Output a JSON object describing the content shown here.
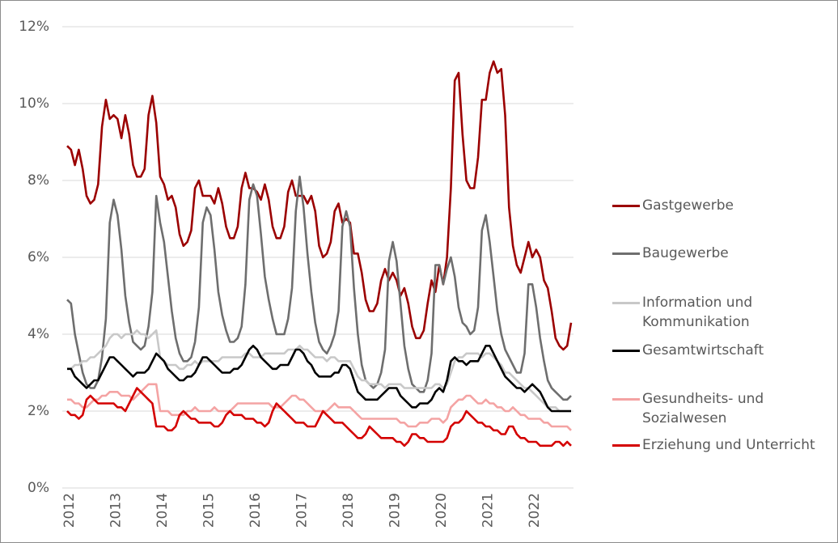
{
  "chart_data": {
    "type": "line",
    "categories": [
      "2012",
      null,
      null,
      null,
      null,
      null,
      null,
      null,
      null,
      null,
      null,
      null,
      "2013",
      null,
      null,
      null,
      null,
      null,
      null,
      null,
      null,
      null,
      null,
      null,
      "2014",
      null,
      null,
      null,
      null,
      null,
      null,
      null,
      null,
      null,
      null,
      null,
      "2015",
      null,
      null,
      null,
      null,
      null,
      null,
      null,
      null,
      null,
      null,
      null,
      "2016",
      null,
      null,
      null,
      null,
      null,
      null,
      null,
      null,
      null,
      null,
      null,
      "2017",
      null,
      null,
      null,
      null,
      null,
      null,
      null,
      null,
      null,
      null,
      null,
      "2018",
      null,
      null,
      null,
      null,
      null,
      null,
      null,
      null,
      null,
      null,
      null,
      "2019",
      null,
      null,
      null,
      null,
      null,
      null,
      null,
      null,
      null,
      null,
      null,
      "2020",
      null,
      null,
      null,
      null,
      null,
      null,
      null,
      null,
      null,
      null,
      null,
      "2021",
      null,
      null,
      null,
      null,
      null,
      null,
      null,
      null,
      null,
      null,
      null,
      "2022",
      null,
      null,
      null,
      null,
      null,
      null,
      null,
      null,
      null,
      null
    ],
    "series": [
      {
        "name": "Gastgewerbe",
        "color": "#9b0000",
        "values": [
          8.9,
          8.8,
          8.4,
          8.8,
          8.3,
          7.6,
          7.4,
          7.5,
          7.9,
          9.4,
          10.1,
          9.6,
          9.7,
          9.6,
          9.1,
          9.7,
          9.2,
          8.4,
          8.1,
          8.1,
          8.3,
          9.7,
          10.2,
          9.5,
          8.1,
          7.9,
          7.5,
          7.6,
          7.3,
          6.6,
          6.3,
          6.4,
          6.7,
          7.8,
          8.0,
          7.6,
          7.6,
          7.6,
          7.4,
          7.8,
          7.4,
          6.8,
          6.5,
          6.5,
          6.8,
          7.8,
          8.2,
          7.8,
          7.8,
          7.7,
          7.5,
          7.9,
          7.5,
          6.8,
          6.5,
          6.5,
          6.8,
          7.7,
          8.0,
          7.6,
          7.6,
          7.6,
          7.4,
          7.6,
          7.2,
          6.3,
          6.0,
          6.1,
          6.4,
          7.2,
          7.4,
          6.9,
          7.0,
          6.9,
          6.1,
          6.1,
          5.6,
          4.9,
          4.6,
          4.6,
          4.8,
          5.4,
          5.7,
          5.4,
          5.6,
          5.4,
          5.0,
          5.2,
          4.8,
          4.2,
          3.9,
          3.9,
          4.1,
          4.8,
          5.4,
          5.1,
          5.8,
          5.3,
          6.0,
          7.8,
          10.6,
          10.8,
          9.2,
          8.0,
          7.8,
          7.8,
          8.6,
          10.1,
          10.1,
          10.8,
          11.1,
          10.8,
          10.9,
          9.7,
          7.3,
          6.3,
          5.8,
          5.6,
          6.0,
          6.4,
          6.0,
          6.2,
          6.0,
          5.4,
          5.2,
          4.6,
          3.9,
          3.7,
          3.6,
          3.7,
          4.3
        ]
      },
      {
        "name": "Baugewerbe",
        "color": "#6e6e6e",
        "values": [
          4.9,
          4.8,
          4.0,
          3.5,
          3.0,
          2.7,
          2.6,
          2.6,
          2.8,
          3.4,
          4.4,
          6.9,
          7.5,
          7.1,
          6.2,
          5.0,
          4.3,
          3.8,
          3.7,
          3.6,
          3.7,
          4.2,
          5.1,
          7.6,
          6.9,
          6.4,
          5.5,
          4.6,
          3.9,
          3.5,
          3.3,
          3.3,
          3.4,
          3.8,
          4.7,
          6.9,
          7.3,
          7.1,
          6.2,
          5.1,
          4.5,
          4.1,
          3.8,
          3.8,
          3.9,
          4.2,
          5.3,
          7.5,
          7.9,
          7.6,
          6.6,
          5.5,
          4.9,
          4.4,
          4.0,
          4.0,
          4.0,
          4.4,
          5.2,
          7.2,
          8.1,
          7.3,
          6.1,
          5.1,
          4.3,
          3.8,
          3.6,
          3.5,
          3.7,
          4.0,
          4.6,
          6.8,
          7.2,
          6.8,
          5.2,
          4.0,
          3.2,
          2.8,
          2.7,
          2.6,
          2.7,
          3.0,
          3.6,
          5.9,
          6.4,
          5.9,
          4.8,
          3.7,
          3.1,
          2.7,
          2.6,
          2.5,
          2.5,
          2.8,
          3.5,
          5.8,
          5.8,
          5.3,
          5.7,
          6.0,
          5.5,
          4.7,
          4.3,
          4.2,
          4.0,
          4.1,
          4.7,
          6.7,
          7.1,
          6.4,
          5.5,
          4.6,
          4.0,
          3.6,
          3.4,
          3.2,
          3.0,
          3.0,
          3.5,
          5.3,
          5.3,
          4.7,
          3.9,
          3.3,
          2.8,
          2.6,
          2.5,
          2.4,
          2.3,
          2.3,
          2.4
        ]
      },
      {
        "name": "Information und\nKommunikation",
        "color": "#c8c8c8",
        "values": [
          3.1,
          3.1,
          3.2,
          3.2,
          3.3,
          3.3,
          3.4,
          3.4,
          3.5,
          3.6,
          3.7,
          3.9,
          4.0,
          4.0,
          3.9,
          4.0,
          4.0,
          4.0,
          4.1,
          4.0,
          4.0,
          3.9,
          4.0,
          4.1,
          3.4,
          3.3,
          3.2,
          3.2,
          3.2,
          3.1,
          3.1,
          3.2,
          3.2,
          3.3,
          3.2,
          3.3,
          3.3,
          3.3,
          3.3,
          3.3,
          3.4,
          3.4,
          3.4,
          3.4,
          3.4,
          3.4,
          3.5,
          3.5,
          3.4,
          3.4,
          3.4,
          3.5,
          3.5,
          3.5,
          3.5,
          3.5,
          3.5,
          3.6,
          3.6,
          3.6,
          3.7,
          3.6,
          3.6,
          3.5,
          3.4,
          3.4,
          3.4,
          3.3,
          3.4,
          3.4,
          3.3,
          3.3,
          3.3,
          3.3,
          3.1,
          2.9,
          2.8,
          2.8,
          2.7,
          2.7,
          2.7,
          2.7,
          2.6,
          2.7,
          2.7,
          2.7,
          2.7,
          2.6,
          2.6,
          2.6,
          2.6,
          2.6,
          2.6,
          2.6,
          2.6,
          2.7,
          2.7,
          2.6,
          2.7,
          3.0,
          3.3,
          3.4,
          3.4,
          3.5,
          3.5,
          3.5,
          3.5,
          3.4,
          3.5,
          3.5,
          3.4,
          3.3,
          3.2,
          3.0,
          3.0,
          2.9,
          2.8,
          2.7,
          2.6,
          2.6,
          2.5,
          2.4,
          2.3,
          2.2,
          2.1,
          2.1,
          2.1,
          2.0,
          2.0,
          2.0,
          2.0
        ]
      },
      {
        "name": "Gesamtwirtschaft",
        "color": "#000000",
        "values": [
          3.1,
          3.1,
          2.9,
          2.8,
          2.7,
          2.6,
          2.7,
          2.8,
          2.8,
          3.0,
          3.2,
          3.4,
          3.4,
          3.3,
          3.2,
          3.1,
          3.0,
          2.9,
          3.0,
          3.0,
          3.0,
          3.1,
          3.3,
          3.5,
          3.4,
          3.3,
          3.1,
          3.0,
          2.9,
          2.8,
          2.8,
          2.9,
          2.9,
          3.0,
          3.2,
          3.4,
          3.4,
          3.3,
          3.2,
          3.1,
          3.0,
          3.0,
          3.0,
          3.1,
          3.1,
          3.2,
          3.4,
          3.6,
          3.7,
          3.6,
          3.4,
          3.3,
          3.2,
          3.1,
          3.1,
          3.2,
          3.2,
          3.2,
          3.4,
          3.6,
          3.6,
          3.5,
          3.3,
          3.2,
          3.0,
          2.9,
          2.9,
          2.9,
          2.9,
          3.0,
          3.0,
          3.2,
          3.2,
          3.1,
          2.8,
          2.5,
          2.4,
          2.3,
          2.3,
          2.3,
          2.3,
          2.4,
          2.5,
          2.6,
          2.6,
          2.6,
          2.4,
          2.3,
          2.2,
          2.1,
          2.1,
          2.2,
          2.2,
          2.2,
          2.3,
          2.5,
          2.6,
          2.5,
          2.8,
          3.3,
          3.4,
          3.3,
          3.3,
          3.2,
          3.3,
          3.3,
          3.3,
          3.5,
          3.7,
          3.7,
          3.5,
          3.3,
          3.1,
          2.9,
          2.8,
          2.7,
          2.6,
          2.6,
          2.5,
          2.6,
          2.7,
          2.6,
          2.5,
          2.3,
          2.1,
          2.0,
          2.0,
          2.0,
          2.0,
          2.0,
          2.0
        ]
      },
      {
        "name": "Gesundheits- und\nSozialwesen",
        "color": "#f4a3a3",
        "values": [
          2.3,
          2.3,
          2.2,
          2.2,
          2.1,
          2.1,
          2.2,
          2.3,
          2.3,
          2.4,
          2.4,
          2.5,
          2.5,
          2.5,
          2.4,
          2.4,
          2.4,
          2.3,
          2.4,
          2.5,
          2.6,
          2.7,
          2.7,
          2.7,
          2.0,
          2.0,
          2.0,
          1.9,
          1.9,
          1.9,
          1.9,
          2.0,
          2.0,
          2.1,
          2.0,
          2.0,
          2.0,
          2.0,
          2.1,
          2.0,
          2.0,
          2.0,
          2.0,
          2.1,
          2.2,
          2.2,
          2.2,
          2.2,
          2.2,
          2.2,
          2.2,
          2.2,
          2.2,
          2.1,
          2.1,
          2.1,
          2.2,
          2.3,
          2.4,
          2.4,
          2.3,
          2.3,
          2.2,
          2.1,
          2.0,
          2.0,
          2.0,
          2.0,
          2.1,
          2.2,
          2.1,
          2.1,
          2.1,
          2.1,
          2.0,
          1.9,
          1.8,
          1.8,
          1.8,
          1.8,
          1.8,
          1.8,
          1.8,
          1.8,
          1.8,
          1.8,
          1.7,
          1.7,
          1.6,
          1.6,
          1.6,
          1.7,
          1.7,
          1.7,
          1.8,
          1.8,
          1.8,
          1.7,
          1.8,
          2.1,
          2.2,
          2.3,
          2.3,
          2.4,
          2.4,
          2.3,
          2.2,
          2.2,
          2.3,
          2.2,
          2.2,
          2.1,
          2.1,
          2.0,
          2.0,
          2.1,
          2.0,
          1.9,
          1.9,
          1.8,
          1.8,
          1.8,
          1.8,
          1.7,
          1.7,
          1.6,
          1.6,
          1.6,
          1.6,
          1.6,
          1.5
        ]
      },
      {
        "name": "Erziehung und Unterricht",
        "color": "#d40000",
        "values": [
          2.0,
          1.9,
          1.9,
          1.8,
          1.9,
          2.3,
          2.4,
          2.3,
          2.2,
          2.2,
          2.2,
          2.2,
          2.2,
          2.1,
          2.1,
          2.0,
          2.2,
          2.4,
          2.6,
          2.5,
          2.4,
          2.3,
          2.2,
          1.6,
          1.6,
          1.6,
          1.5,
          1.5,
          1.6,
          1.9,
          2.0,
          1.9,
          1.8,
          1.8,
          1.7,
          1.7,
          1.7,
          1.7,
          1.6,
          1.6,
          1.7,
          1.9,
          2.0,
          1.9,
          1.9,
          1.9,
          1.8,
          1.8,
          1.8,
          1.7,
          1.7,
          1.6,
          1.7,
          2.0,
          2.2,
          2.1,
          2.0,
          1.9,
          1.8,
          1.7,
          1.7,
          1.7,
          1.6,
          1.6,
          1.6,
          1.8,
          2.0,
          1.9,
          1.8,
          1.7,
          1.7,
          1.7,
          1.6,
          1.5,
          1.4,
          1.3,
          1.3,
          1.4,
          1.6,
          1.5,
          1.4,
          1.3,
          1.3,
          1.3,
          1.3,
          1.2,
          1.2,
          1.1,
          1.2,
          1.4,
          1.4,
          1.3,
          1.3,
          1.2,
          1.2,
          1.2,
          1.2,
          1.2,
          1.3,
          1.6,
          1.7,
          1.7,
          1.8,
          2.0,
          1.9,
          1.8,
          1.7,
          1.7,
          1.6,
          1.6,
          1.5,
          1.5,
          1.4,
          1.4,
          1.6,
          1.6,
          1.4,
          1.3,
          1.3,
          1.2,
          1.2,
          1.2,
          1.1,
          1.1,
          1.1,
          1.1,
          1.2,
          1.2,
          1.1,
          1.2,
          1.1
        ]
      }
    ],
    "ylim": [
      0,
      12
    ],
    "yticks": [
      {
        "value": 0,
        "label": "0%"
      },
      {
        "value": 2,
        "label": "2%"
      },
      {
        "value": 4,
        "label": "4%"
      },
      {
        "value": 6,
        "label": "6%"
      },
      {
        "value": 8,
        "label": "8%"
      },
      {
        "value": 10,
        "label": "10%"
      },
      {
        "value": 12,
        "label": "12%"
      }
    ],
    "grid": true,
    "legend": "right"
  }
}
